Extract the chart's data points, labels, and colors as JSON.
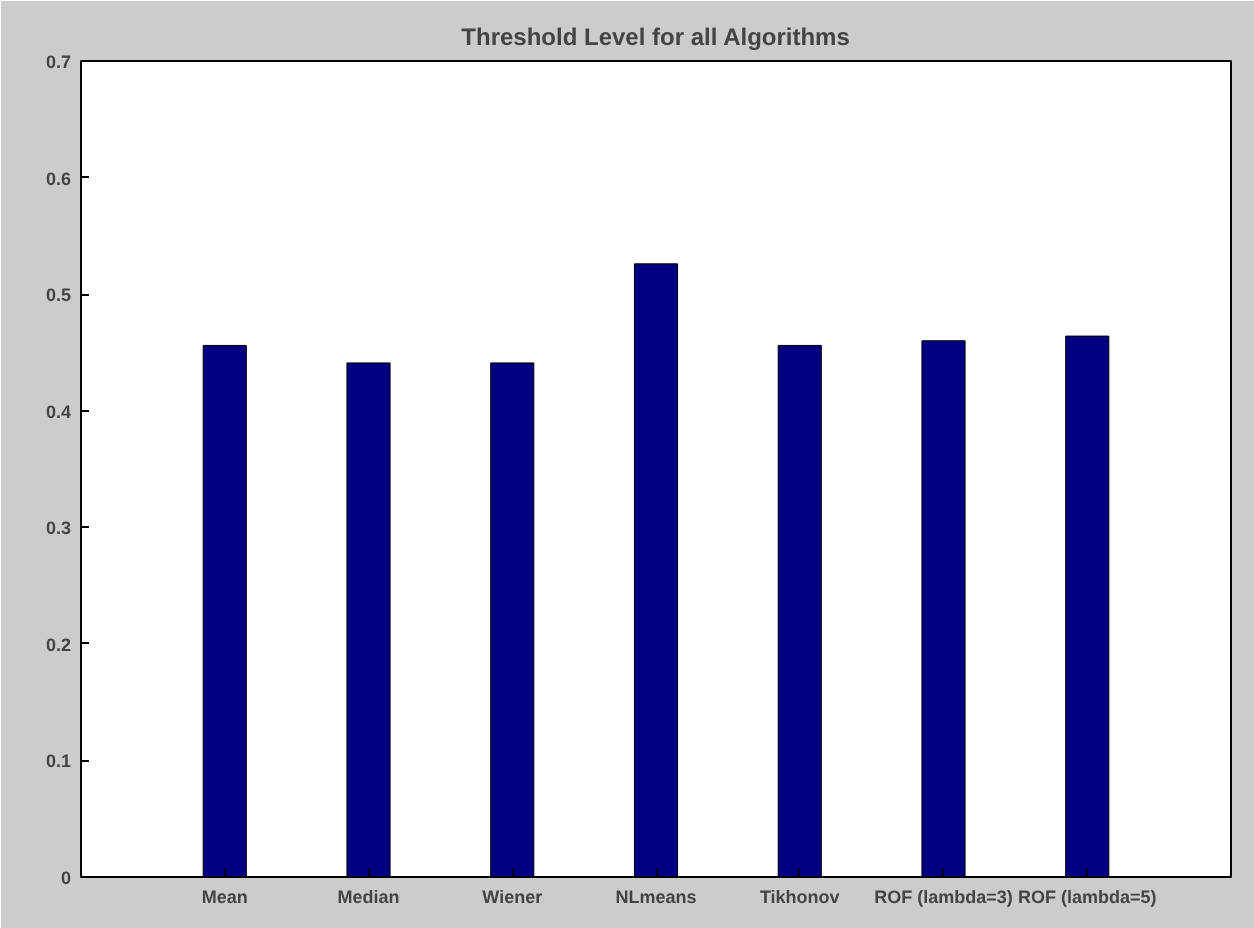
{
  "chart_data": {
    "type": "bar",
    "title": "Threshold Level for all Algorithms",
    "categories": [
      "Mean",
      "Median",
      "Wiener",
      "NLmeans",
      "Tikhonov",
      "ROF (lambda=3)",
      "ROF (lambda=5)"
    ],
    "values": [
      0.456,
      0.441,
      0.441,
      0.526,
      0.456,
      0.46,
      0.464
    ],
    "color": "#000080",
    "ylim": [
      0,
      0.7
    ],
    "yticks": [
      0,
      0.1,
      0.2,
      0.3,
      0.4,
      0.5,
      0.6,
      0.7
    ],
    "grid": false
  }
}
